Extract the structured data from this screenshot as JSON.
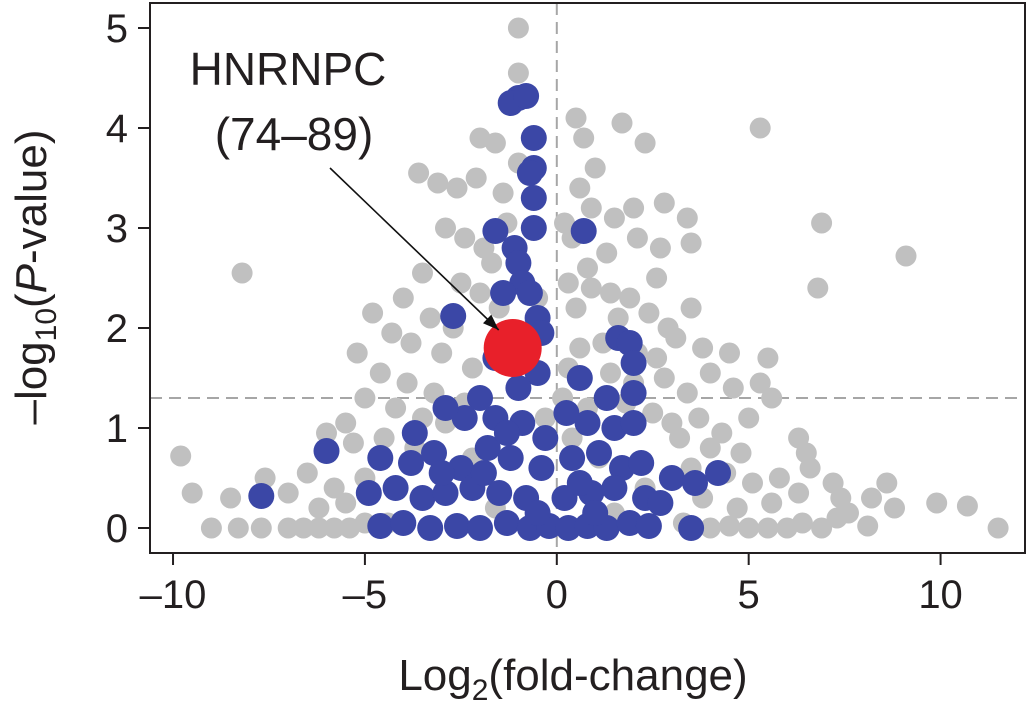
{
  "chart_data": {
    "type": "scatter",
    "title": "",
    "xlabel": {
      "prefix": "Log",
      "subscript": "2",
      "suffix": "(fold-change)"
    },
    "ylabel": {
      "prefix": "–log",
      "subscript": "10",
      "middle": "(",
      "italic": "P",
      "suffix": "-value)"
    },
    "xlim": [
      -10.6,
      12.2
    ],
    "ylim": [
      -0.25,
      5.25
    ],
    "x_ticks": [
      -10,
      -5,
      0,
      5,
      10
    ],
    "x_tick_labels": [
      "–10",
      "–5",
      "0",
      "5",
      "10"
    ],
    "y_ticks": [
      0,
      1,
      2,
      3,
      4,
      5
    ],
    "y_tick_labels": [
      "0",
      "1",
      "2",
      "3",
      "4",
      "5"
    ],
    "grid": false,
    "reference_lines": {
      "vertical_x": 0,
      "horizontal_y": 1.3
    },
    "colors": {
      "not_significant": "#c0c0c0",
      "significant": "#3b47a6",
      "highlight": "#e8202a",
      "reference_line": "#a6a6a6",
      "axis": "#231f20"
    },
    "series": [
      {
        "key": "background",
        "points": [
          [
            -1.0,
            5.0
          ],
          [
            -1.0,
            4.55
          ],
          [
            0.5,
            4.1
          ],
          [
            5.3,
            4.0
          ],
          [
            -2.0,
            3.9
          ],
          [
            -1.6,
            3.85
          ],
          [
            0.7,
            3.9
          ],
          [
            1.7,
            4.05
          ],
          [
            2.3,
            3.85
          ],
          [
            -3.6,
            3.55
          ],
          [
            -3.1,
            3.45
          ],
          [
            -2.6,
            3.4
          ],
          [
            -2.1,
            3.5
          ],
          [
            -1.4,
            3.35
          ],
          [
            0.6,
            3.4
          ],
          [
            0.9,
            3.2
          ],
          [
            1.5,
            3.1
          ],
          [
            2.0,
            3.2
          ],
          [
            2.8,
            3.25
          ],
          [
            3.4,
            3.1
          ],
          [
            6.9,
            3.05
          ],
          [
            -2.9,
            3.0
          ],
          [
            -2.4,
            2.9
          ],
          [
            -1.9,
            2.8
          ],
          [
            -1.7,
            2.65
          ],
          [
            0.4,
            2.9
          ],
          [
            0.8,
            2.6
          ],
          [
            1.3,
            2.75
          ],
          [
            2.1,
            2.9
          ],
          [
            2.7,
            2.8
          ],
          [
            3.5,
            2.85
          ],
          [
            9.1,
            2.72
          ],
          [
            -3.5,
            2.55
          ],
          [
            -2.5,
            2.45
          ],
          [
            -2.0,
            2.35
          ],
          [
            -1.5,
            2.2
          ],
          [
            0.3,
            2.45
          ],
          [
            0.9,
            2.4
          ],
          [
            1.4,
            2.35
          ],
          [
            1.9,
            2.3
          ],
          [
            2.6,
            2.5
          ],
          [
            -8.2,
            2.55
          ],
          [
            6.8,
            2.4
          ],
          [
            -4.0,
            2.3
          ],
          [
            -3.3,
            2.1
          ],
          [
            -2.7,
            2.0
          ],
          [
            0.5,
            2.2
          ],
          [
            1.6,
            2.1
          ],
          [
            2.4,
            2.15
          ],
          [
            2.9,
            2.0
          ],
          [
            3.5,
            2.2
          ],
          [
            -4.8,
            2.15
          ],
          [
            -4.3,
            1.95
          ],
          [
            -3.8,
            1.85
          ],
          [
            -3.0,
            1.75
          ],
          [
            -2.2,
            1.6
          ],
          [
            0.6,
            1.8
          ],
          [
            1.2,
            1.85
          ],
          [
            2.1,
            1.75
          ],
          [
            2.6,
            1.7
          ],
          [
            3.1,
            1.9
          ],
          [
            3.8,
            1.8
          ],
          [
            4.5,
            1.75
          ],
          [
            -5.2,
            1.75
          ],
          [
            -4.6,
            1.55
          ],
          [
            -3.9,
            1.45
          ],
          [
            -3.2,
            1.35
          ],
          [
            -2.4,
            1.25
          ],
          [
            0.3,
            1.6
          ],
          [
            1.4,
            1.55
          ],
          [
            2.0,
            1.45
          ],
          [
            2.8,
            1.5
          ],
          [
            3.4,
            1.35
          ],
          [
            4.0,
            1.55
          ],
          [
            4.6,
            1.4
          ],
          [
            5.3,
            1.45
          ],
          [
            5.5,
            1.7
          ],
          [
            -5.0,
            1.3
          ],
          [
            -4.2,
            1.2
          ],
          [
            -3.5,
            1.1
          ],
          [
            -2.9,
            1.05
          ],
          [
            0.8,
            1.2
          ],
          [
            1.8,
            1.25
          ],
          [
            2.5,
            1.15
          ],
          [
            3.0,
            1.05
          ],
          [
            3.7,
            1.1
          ],
          [
            4.3,
            0.95
          ],
          [
            5.0,
            1.1
          ],
          [
            5.6,
            1.3
          ],
          [
            -5.5,
            1.05
          ],
          [
            -6.0,
            0.95
          ],
          [
            -5.3,
            0.85
          ],
          [
            -4.5,
            0.9
          ],
          [
            -3.7,
            0.8
          ],
          [
            3.2,
            0.9
          ],
          [
            4.0,
            0.8
          ],
          [
            4.8,
            0.75
          ],
          [
            6.3,
            0.9
          ],
          [
            6.5,
            0.75
          ],
          [
            -9.8,
            0.72
          ],
          [
            -7.6,
            0.5
          ],
          [
            -6.5,
            0.55
          ],
          [
            -5.8,
            0.4
          ],
          [
            -5.0,
            0.5
          ],
          [
            3.5,
            0.6
          ],
          [
            4.4,
            0.55
          ],
          [
            5.1,
            0.45
          ],
          [
            5.8,
            0.5
          ],
          [
            6.6,
            0.6
          ],
          [
            7.2,
            0.45
          ],
          [
            8.6,
            0.45
          ],
          [
            -9.5,
            0.35
          ],
          [
            -8.5,
            0.3
          ],
          [
            -7.0,
            0.35
          ],
          [
            -6.2,
            0.2
          ],
          [
            -5.5,
            0.25
          ],
          [
            3.8,
            0.3
          ],
          [
            4.7,
            0.2
          ],
          [
            5.6,
            0.25
          ],
          [
            6.3,
            0.35
          ],
          [
            7.4,
            0.3
          ],
          [
            8.2,
            0.3
          ],
          [
            8.8,
            0.2
          ],
          [
            9.9,
            0.25
          ],
          [
            10.7,
            0.22
          ],
          [
            -9.0,
            0.0
          ],
          [
            -8.3,
            0.0
          ],
          [
            -7.7,
            0.0
          ],
          [
            -7.0,
            0.0
          ],
          [
            -6.6,
            0.0
          ],
          [
            -6.2,
            0.0
          ],
          [
            -5.8,
            0.0
          ],
          [
            -5.4,
            0.0
          ],
          [
            -5.0,
            0.05
          ],
          [
            4.0,
            0.0
          ],
          [
            4.5,
            0.02
          ],
          [
            5.0,
            0.0
          ],
          [
            5.5,
            0.0
          ],
          [
            6.0,
            0.0
          ],
          [
            6.4,
            0.05
          ],
          [
            6.9,
            0.0
          ],
          [
            7.3,
            0.1
          ],
          [
            7.6,
            0.15
          ],
          [
            8.1,
            0.02
          ],
          [
            11.5,
            0.0
          ],
          [
            -4.4,
            0.05
          ],
          [
            3.3,
            0.05
          ],
          [
            -1.0,
            3.65
          ],
          [
            -1.3,
            3.05
          ],
          [
            0.2,
            3.05
          ],
          [
            -0.7,
            3.55
          ],
          [
            1.0,
            3.6
          ],
          [
            -0.5,
            2.3
          ],
          [
            0.15,
            1.3
          ],
          [
            -0.3,
            1.1
          ],
          [
            0.4,
            0.9
          ],
          [
            1.1,
            0.7
          ],
          [
            -2.2,
            0.7
          ],
          [
            2.3,
            0.4
          ],
          [
            -1.6,
            0.2
          ],
          [
            1.5,
            0.15
          ]
        ]
      },
      {
        "key": "significant",
        "points": [
          [
            -1.0,
            4.3
          ],
          [
            -1.2,
            4.25
          ],
          [
            -0.8,
            4.32
          ],
          [
            -0.6,
            3.9
          ],
          [
            -0.6,
            3.6
          ],
          [
            -0.7,
            3.55
          ],
          [
            -0.6,
            3.3
          ],
          [
            -0.6,
            3.0
          ],
          [
            -1.6,
            2.97
          ],
          [
            0.7,
            2.97
          ],
          [
            -1.1,
            2.8
          ],
          [
            -1.0,
            2.65
          ],
          [
            -0.9,
            2.45
          ],
          [
            -0.7,
            2.35
          ],
          [
            -1.4,
            2.35
          ],
          [
            -0.5,
            2.1
          ],
          [
            -2.7,
            2.12
          ],
          [
            -0.4,
            1.95
          ],
          [
            -0.9,
            1.9
          ],
          [
            1.6,
            1.9
          ],
          [
            1.9,
            1.85
          ],
          [
            2.0,
            1.65
          ],
          [
            -1.6,
            1.7
          ],
          [
            -0.5,
            1.55
          ],
          [
            -1.0,
            1.4
          ],
          [
            -2.0,
            1.3
          ],
          [
            0.6,
            1.5
          ],
          [
            1.3,
            1.3
          ],
          [
            2.0,
            1.35
          ],
          [
            -2.4,
            1.1
          ],
          [
            -1.6,
            1.1
          ],
          [
            -0.9,
            1.05
          ],
          [
            0.8,
            1.05
          ],
          [
            1.5,
            1.0
          ],
          [
            2.0,
            1.05
          ],
          [
            -6.0,
            0.77
          ],
          [
            -4.6,
            0.7
          ],
          [
            -3.8,
            0.65
          ],
          [
            -3.2,
            0.75
          ],
          [
            -2.5,
            0.6
          ],
          [
            -1.8,
            0.8
          ],
          [
            -1.2,
            0.7
          ],
          [
            -0.4,
            0.6
          ],
          [
            0.4,
            0.7
          ],
          [
            1.1,
            0.75
          ],
          [
            1.7,
            0.6
          ],
          [
            2.2,
            0.65
          ],
          [
            3.0,
            0.5
          ],
          [
            3.6,
            0.45
          ],
          [
            4.2,
            0.55
          ],
          [
            -7.7,
            0.32
          ],
          [
            -4.9,
            0.35
          ],
          [
            -4.2,
            0.4
          ],
          [
            -3.5,
            0.3
          ],
          [
            -2.9,
            0.35
          ],
          [
            -2.2,
            0.4
          ],
          [
            -1.5,
            0.35
          ],
          [
            -0.8,
            0.3
          ],
          [
            0.2,
            0.3
          ],
          [
            0.9,
            0.35
          ],
          [
            1.5,
            0.4
          ],
          [
            2.3,
            0.3
          ],
          [
            2.7,
            0.25
          ],
          [
            -4.6,
            0.02
          ],
          [
            -4.0,
            0.05
          ],
          [
            -3.3,
            0.0
          ],
          [
            -2.6,
            0.02
          ],
          [
            -2.0,
            0.0
          ],
          [
            -1.3,
            0.05
          ],
          [
            -0.7,
            0.0
          ],
          [
            -0.2,
            0.02
          ],
          [
            0.3,
            0.0
          ],
          [
            0.8,
            0.02
          ],
          [
            1.3,
            0.0
          ],
          [
            1.9,
            0.05
          ],
          [
            2.4,
            0.02
          ],
          [
            3.5,
            0.0
          ],
          [
            -3.7,
            0.95
          ],
          [
            -2.9,
            1.2
          ],
          [
            -1.3,
            0.95
          ],
          [
            0.25,
            1.15
          ],
          [
            -0.3,
            0.9
          ],
          [
            0.6,
            0.45
          ],
          [
            -0.5,
            0.15
          ],
          [
            1.0,
            0.15
          ],
          [
            -1.9,
            0.55
          ],
          [
            -3.0,
            0.55
          ]
        ]
      }
    ],
    "highlight": {
      "x": -1.15,
      "y": 1.8,
      "label_line1": "HNRNPC",
      "label_line2": "(74–89)"
    }
  }
}
